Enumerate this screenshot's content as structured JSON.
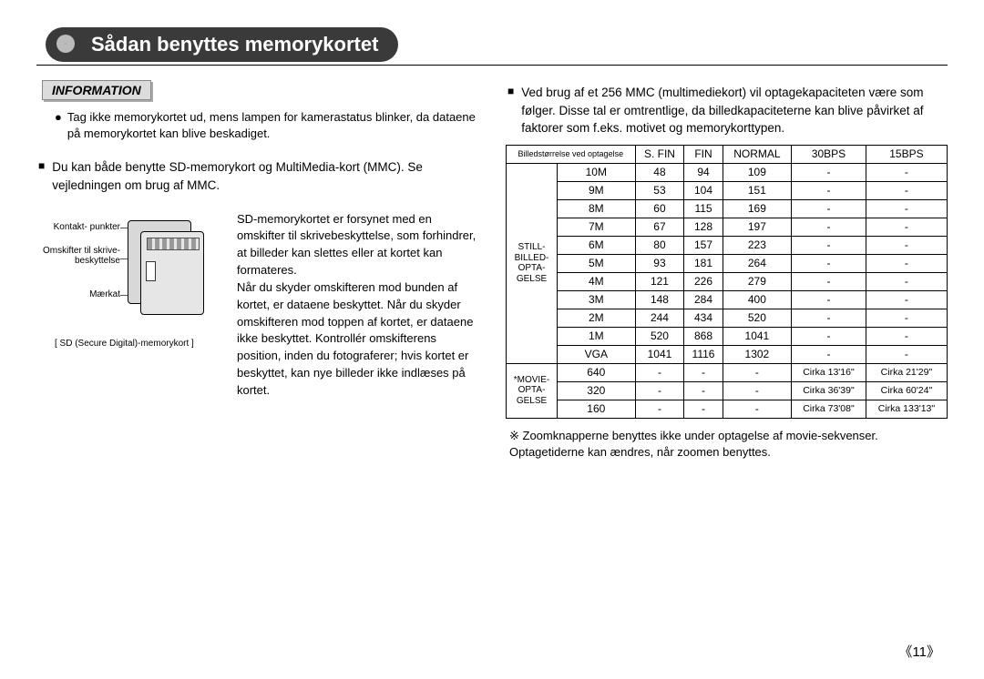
{
  "title": "Sådan benyttes memorykortet",
  "info": {
    "heading": "INFORMATION",
    "bullet": "Tag ikke memorykortet ud, mens lampen for kamerastatus blinker, da dataene på memorykortet kan blive beskadiget."
  },
  "left_bullet": "Du kan både benytte SD-memorykort og MultiMedia-kort (MMC). Se vejledningen om brug af MMC.",
  "sd_diagram": {
    "label_contacts": "Kontakt- punkter",
    "label_switch": "Omskifter til skrive- beskyttelse",
    "label_sticker": "Mærkat",
    "caption": "[ SD (Secure Digital)-memorykort ]"
  },
  "sd_text": "SD-memorykortet er forsynet med en omskifter til skrivebeskyttelse, som forhindrer, at billeder kan slettes eller at kortet kan formateres.\nNår du skyder omskifteren mod bunden af kortet, er dataene beskyttet. Når du skyder omskifteren mod toppen af kortet, er dataene ikke beskyttet. Kontrollér omskifterens position, inden du fotograferer; hvis kortet er beskyttet, kan nye billeder ikke indlæses på kortet.",
  "right_bullet": "Ved brug af et 256 MMC (multimediekort) vil optagekapaciteten være som følger.  Disse tal er omtrentlige, da billedkapaciteterne kan blive påvirket af faktorer som f.eks. motivet og memorykorttypen.",
  "table_headers": [
    "Billedstørrelse ved optagelse",
    "S. FIN",
    "FIN",
    "NORMAL",
    "30BPS",
    "15BPS"
  ],
  "still_label": "STILL-\nBILLED-\nOPTA-\nGELSE",
  "movie_label": "*MOVIE-\nOPTA-\nGELSE",
  "still_rows": [
    {
      "size": "10M",
      "sfin": "48",
      "fin": "94",
      "normal": "109",
      "b30": "-",
      "b15": "-"
    },
    {
      "size": "9M",
      "sfin": "53",
      "fin": "104",
      "normal": "151",
      "b30": "-",
      "b15": "-"
    },
    {
      "size": "8M",
      "sfin": "60",
      "fin": "115",
      "normal": "169",
      "b30": "-",
      "b15": "-"
    },
    {
      "size": "7M",
      "sfin": "67",
      "fin": "128",
      "normal": "197",
      "b30": "-",
      "b15": "-"
    },
    {
      "size": "6M",
      "sfin": "80",
      "fin": "157",
      "normal": "223",
      "b30": "-",
      "b15": "-"
    },
    {
      "size": "5M",
      "sfin": "93",
      "fin": "181",
      "normal": "264",
      "b30": "-",
      "b15": "-"
    },
    {
      "size": "4M",
      "sfin": "121",
      "fin": "226",
      "normal": "279",
      "b30": "-",
      "b15": "-"
    },
    {
      "size": "3M",
      "sfin": "148",
      "fin": "284",
      "normal": "400",
      "b30": "-",
      "b15": "-"
    },
    {
      "size": "2M",
      "sfin": "244",
      "fin": "434",
      "normal": "520",
      "b30": "-",
      "b15": "-"
    },
    {
      "size": "1M",
      "sfin": "520",
      "fin": "868",
      "normal": "1041",
      "b30": "-",
      "b15": "-"
    },
    {
      "size": "VGA",
      "sfin": "1041",
      "fin": "1116",
      "normal": "1302",
      "b30": "-",
      "b15": "-"
    }
  ],
  "movie_rows": [
    {
      "size": "640",
      "sfin": "-",
      "fin": "-",
      "normal": "-",
      "b30": "Cirka 13'16\"",
      "b15": "Cirka 21'29\""
    },
    {
      "size": "320",
      "sfin": "-",
      "fin": "-",
      "normal": "-",
      "b30": "Cirka 36'39\"",
      "b15": "Cirka 60'24\""
    },
    {
      "size": "160",
      "sfin": "-",
      "fin": "-",
      "normal": "-",
      "b30": "Cirka 73'08\"",
      "b15": "Cirka 133'13\""
    }
  ],
  "footnote": "※ Zoomknapperne benyttes ikke under optagelse af movie-sekvenser.\n     Optagetiderne kan ændres, når zoomen benyttes.",
  "page": "《11》"
}
